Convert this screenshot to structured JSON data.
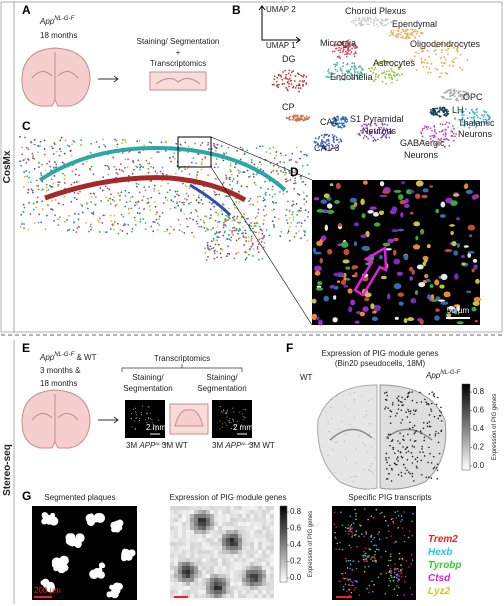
{
  "side_labels": {
    "cosmx": "CosMx",
    "stereo_seq": "Stereo-seq"
  },
  "panel_a": {
    "letter": "A",
    "genotype": {
      "base": "App",
      "sup": "NL-G-F"
    },
    "age": "18 months",
    "step_1": "Staining/ Segmentation",
    "plus": "+",
    "step_2": "Transcriptomics"
  },
  "panel_b": {
    "letter": "B",
    "axis_y": "UMAP 2",
    "axis_x": "UMAP 1",
    "clusters": [
      "Choroid Plexus",
      "Ependymal",
      "Microglia",
      "Oligodendrocytes",
      "DG",
      "Astrocytes",
      "Endothelia",
      "OPC",
      "LH",
      "Thalamic",
      "Neurons",
      "CP",
      "CA4",
      "S1 Pyramidal",
      "Neurons",
      "CA1-3",
      "GABAergic",
      "Neurons"
    ]
  },
  "panel_c": {
    "letter": "C"
  },
  "panel_d": {
    "letter": "D",
    "scale": "50 µm"
  },
  "panel_e": {
    "letter": "E",
    "genotype": {
      "base": "App",
      "sup": "NL-G-F",
      "rest": " & WT"
    },
    "age_1": "3 months &",
    "age_2": "18 months",
    "method": "Transcriptomics",
    "step_left": [
      "Staining/",
      "Segmentation"
    ],
    "step_right": [
      "Staining/",
      "Segmentation"
    ],
    "scale_1": "2 mm",
    "scale_2": "2 mm",
    "sample_1": {
      "pre": "3M ",
      "base": "APP",
      "sup": "NL-G-F"
    },
    "sample_2": "3M WT",
    "sample_3": {
      "pre": "3M ",
      "base": "APP",
      "sup": "NL-G-F"
    },
    "sample_4": "3M WT"
  },
  "panel_f": {
    "letter": "F",
    "title": "Expression of PIG module genes",
    "subtitle": "(Bin20 pseudocells, 18M)",
    "left_label": "WT",
    "right_label": {
      "base": "App",
      "sup": "NL-G-F"
    },
    "colorbar_label": "Expression of PIG genes",
    "colorbar_ticks": [
      "0.8",
      "0.6",
      "0.4",
      "0.2",
      "0.0"
    ]
  },
  "panel_g": {
    "letter": "G",
    "title_1": "Segmented plaques",
    "scale": "200 µm",
    "title_2": "Expression of PIG module genes",
    "colorbar_label": "Expression of PIG genes",
    "colorbar_ticks": [
      "0.8",
      "0.6",
      "0.4",
      "0.2",
      "0.0"
    ],
    "title_3": "Specific PIG transcripts",
    "genes": [
      "Trem2",
      "Hexb",
      "Tyrobp",
      "Ctsd",
      "Lyz2"
    ]
  }
}
